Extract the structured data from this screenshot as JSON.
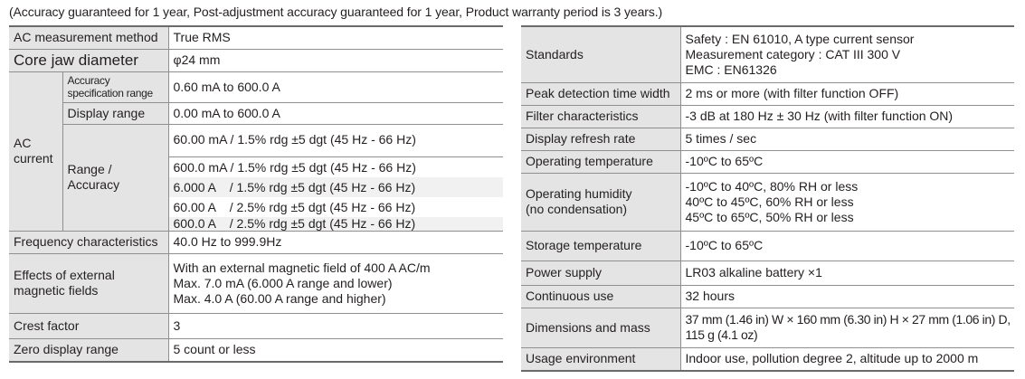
{
  "note": "(Accuracy guaranteed for 1 year, Post-adjustment accuracy guaranteed for 1 year, Product warranty period is 3 years.)",
  "left": {
    "ac_method": {
      "label": "AC measurement method",
      "value": "True RMS"
    },
    "core_jaw": {
      "label": "Core jaw diameter",
      "value": "φ24 mm"
    },
    "ac_current": {
      "label_1": "AC",
      "label_2": "current",
      "acc_spec": {
        "label_1": "Accuracy",
        "label_2": "specification range",
        "value": "0.60 mA to 600.0 A"
      },
      "display_range": {
        "label": "Display range",
        "value": "0.00 mA to 600.0 A"
      },
      "range_accuracy": {
        "label_1": "Range /",
        "label_2": "Accuracy",
        "rows": [
          "60.00 mA / 1.5% rdg ±5 dgt (45 Hz - 66 Hz)",
          "600.0 mA / 1.5% rdg ±5 dgt (45 Hz - 66 Hz)",
          "6.000 A    / 1.5% rdg ±5 dgt (45 Hz - 66 Hz)",
          "60.00 A    / 2.5% rdg ±5 dgt (45 Hz - 66 Hz)",
          "600.0 A    / 2.5% rdg ±5 dgt (45 Hz - 66 Hz)"
        ]
      }
    },
    "frequency": {
      "label": "Frequency characteristics",
      "value": "40.0 Hz to 999.9Hz"
    },
    "magnetic": {
      "label_1": "Effects of external",
      "label_2": "magnetic fields",
      "lines": [
        "With an external magnetic field of 400 A AC/m",
        "Max. 7.0 mA (6.000 A range and lower)",
        "Max. 4.0 A (60.00 A range and higher)"
      ]
    },
    "crest": {
      "label": "Crest factor",
      "value": "3"
    },
    "zero": {
      "label": "Zero display range",
      "value": "5 count or less"
    }
  },
  "right": {
    "standards": {
      "label": "Standards",
      "lines": [
        "Safety : EN 61010, A type current sensor",
        "Measurement category : CAT III 300 V",
        "EMC : EN61326"
      ]
    },
    "peak": {
      "label": "Peak detection time width",
      "value": "2 ms or more (with filter function OFF)"
    },
    "filter": {
      "label": "Filter characteristics",
      "value": "-3 dB at 180 Hz ± 30 Hz (with filter function ON)"
    },
    "refresh": {
      "label": "Display refresh rate",
      "value": "5 times / sec"
    },
    "op_temp": {
      "label": "Operating temperature",
      "value": "-10ºC to 65ºC"
    },
    "op_humidity": {
      "label_1": "Operating humidity",
      "label_2": "(no condensation)",
      "lines": [
        "-10ºC to 40ºC, 80% RH or less",
        "40ºC to 45ºC, 60% RH or less",
        "45ºC to 65ºC, 50% RH or less"
      ]
    },
    "storage": {
      "label": "Storage temperature",
      "value": "-10ºC to 65ºC"
    },
    "power": {
      "label": "Power supply",
      "value": "LR03 alkaline battery ×1"
    },
    "continuous": {
      "label": "Continuous use",
      "value": "32 hours"
    },
    "dimensions": {
      "label": "Dimensions and mass",
      "lines": [
        "37 mm (1.46 in) W × 160 mm (6.30 in) H × 27 mm (1.06 in) D,",
        "115 g (4.1 oz)"
      ]
    },
    "usage": {
      "label": "Usage environment",
      "value": "Indoor use, pollution degree 2, altitude up to 2000 m"
    }
  }
}
